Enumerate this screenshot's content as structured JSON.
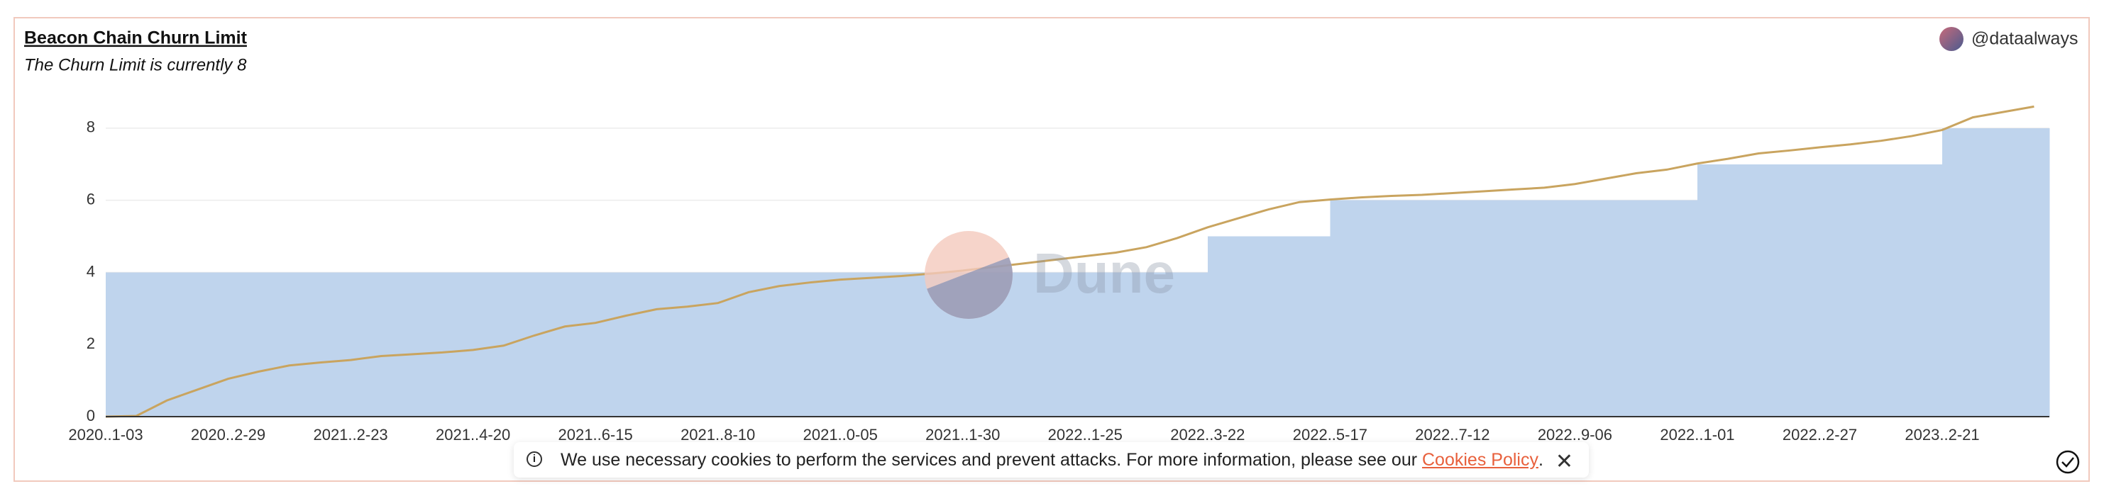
{
  "chart_data": {
    "type": "area",
    "title": "Beacon Chain Churn Limit",
    "subtitle": "The Churn Limit is currently 8",
    "watermark": "Dune",
    "categories": [
      "2020..1-03",
      null,
      null,
      null,
      "2020..2-29",
      null,
      null,
      null,
      "2021..2-23",
      null,
      null,
      null,
      "2021..4-20",
      null,
      null,
      null,
      "2021..6-15",
      null,
      null,
      null,
      "2021..8-10",
      null,
      null,
      null,
      "2021..0-05",
      null,
      null,
      null,
      "2021..1-30",
      null,
      null,
      null,
      "2022..1-25",
      null,
      null,
      null,
      "2022..3-22",
      null,
      null,
      null,
      "2022..5-17",
      null,
      null,
      null,
      "2022..7-12",
      null,
      null,
      null,
      "2022..9-06",
      null,
      null,
      null,
      "2022..1-01",
      null,
      null,
      null,
      "2022..2-27",
      null,
      null,
      null,
      "2023..2-21",
      null,
      null,
      null
    ],
    "series": [
      {
        "type": "area",
        "color": "#bfd4ed",
        "values": [
          4,
          4,
          4,
          4,
          4,
          4,
          4,
          4,
          4,
          4,
          4,
          4,
          4,
          4,
          4,
          4,
          4,
          4,
          4,
          4,
          4,
          4,
          4,
          4,
          4,
          4,
          4,
          4,
          4,
          4,
          4,
          4,
          4,
          4,
          4,
          4,
          5,
          5,
          5,
          5,
          6,
          6,
          6,
          6,
          6,
          6,
          6,
          6,
          6,
          6,
          6,
          6,
          7,
          7,
          7,
          7,
          7,
          7,
          7,
          7,
          8,
          8,
          8,
          8
        ]
      },
      {
        "type": "line",
        "color": "#c9a45f",
        "values": [
          0,
          0.02,
          0.45,
          0.75,
          1.05,
          1.25,
          1.42,
          1.5,
          1.57,
          1.68,
          1.73,
          1.78,
          1.85,
          1.97,
          2.25,
          2.5,
          2.6,
          2.8,
          2.98,
          3.05,
          3.15,
          3.45,
          3.62,
          3.72,
          3.8,
          3.85,
          3.9,
          3.97,
          4.05,
          4.15,
          4.25,
          4.35,
          4.45,
          4.55,
          4.7,
          4.95,
          5.25,
          5.5,
          5.75,
          5.95,
          6.02,
          6.08,
          6.12,
          6.15,
          6.2,
          6.25,
          6.3,
          6.35,
          6.45,
          6.6,
          6.75,
          6.85,
          7.02,
          7.15,
          7.3,
          7.38,
          7.47,
          7.55,
          7.65,
          7.78,
          7.95,
          8.3,
          8.45,
          8.6
        ]
      }
    ],
    "ylim": [
      0,
      9
    ],
    "yticks": [
      0,
      2,
      4,
      6,
      8
    ],
    "grid": true
  },
  "author": "@dataalways",
  "cookie_banner": {
    "info_icon": "i",
    "text": "We use necessary cookies to perform the services and prevent attacks. For more information, please see our",
    "link": "Cookies Policy",
    "text_after": ".",
    "close": "✕"
  }
}
